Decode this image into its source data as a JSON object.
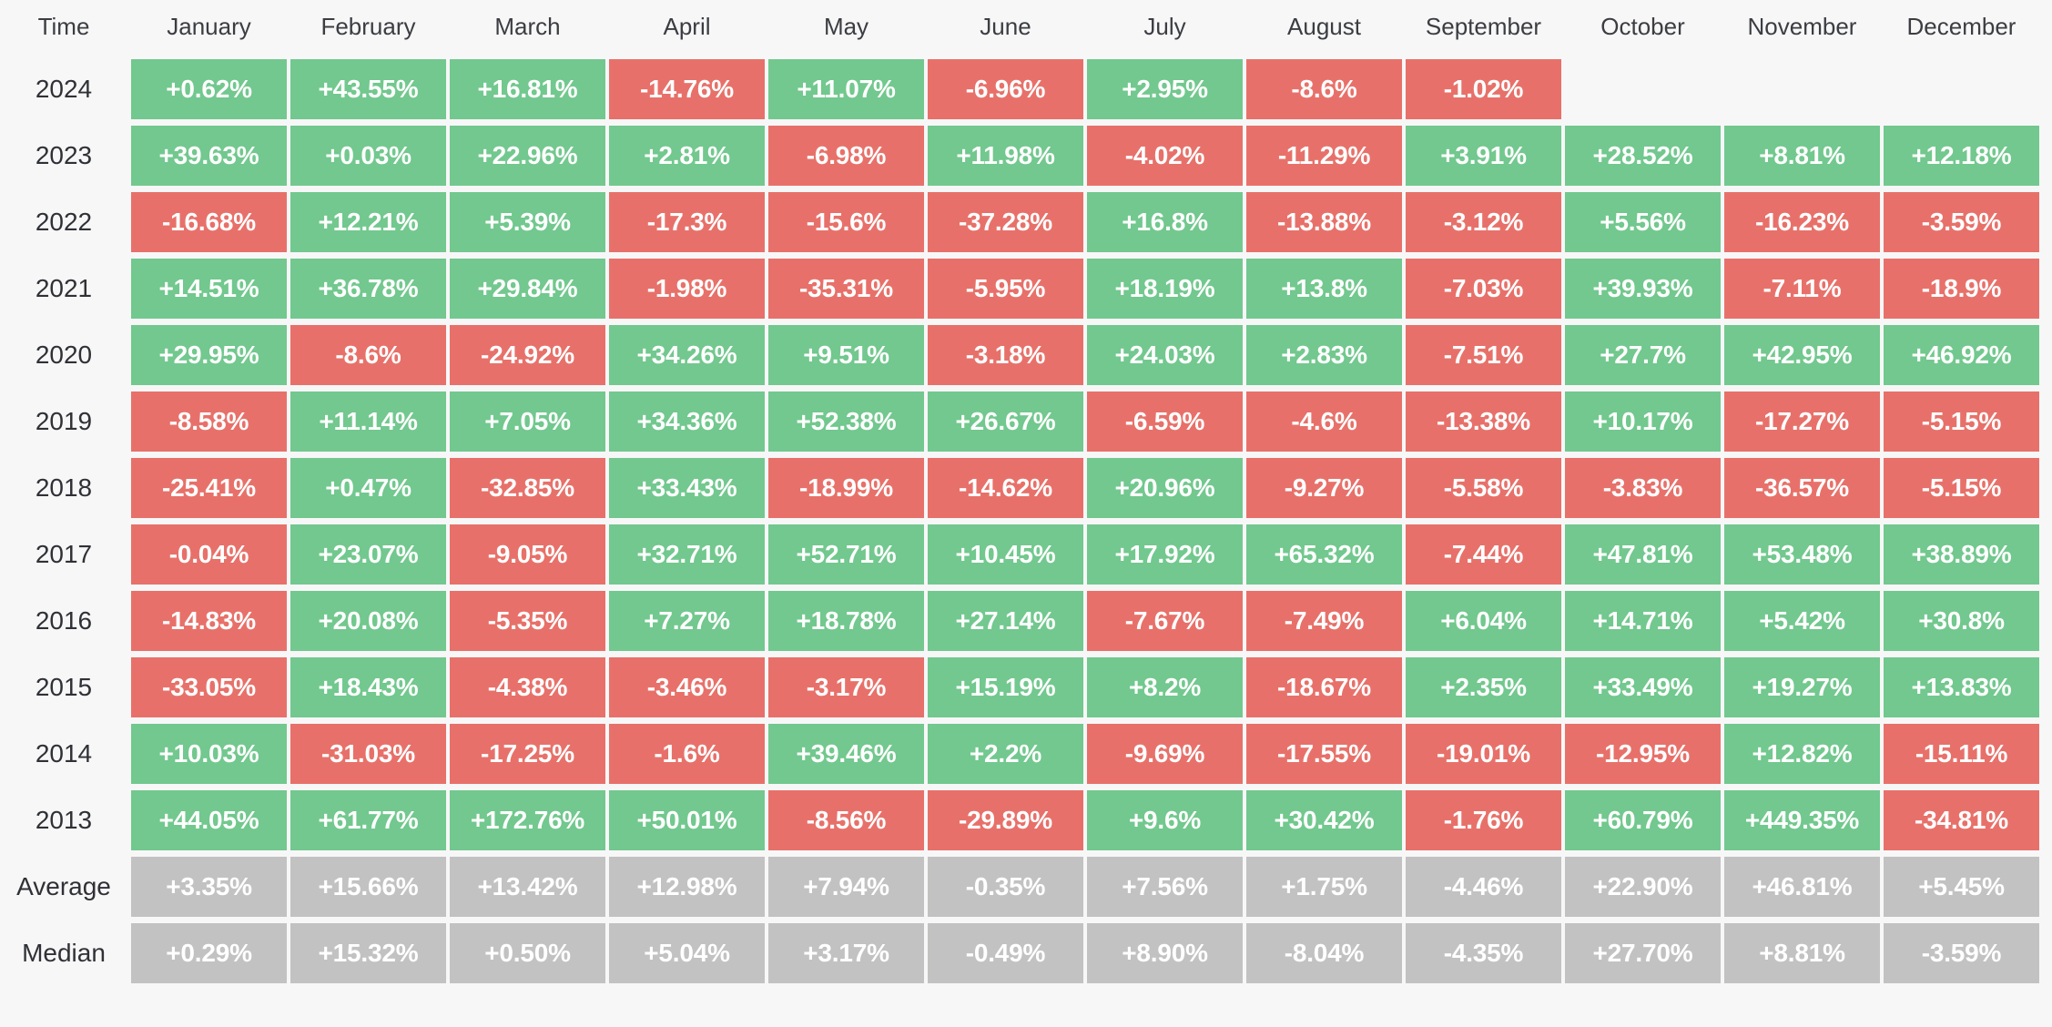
{
  "colors": {
    "positive": "#72c88e",
    "negative": "#e7716a",
    "neutral": "#c2c2c2",
    "background": "#f7f7f8",
    "header_text": "#3b3d42",
    "label_text": "#2f3136",
    "cell_text": "#ffffff"
  },
  "table": {
    "time_header": "Time",
    "months": [
      "January",
      "February",
      "March",
      "April",
      "May",
      "June",
      "July",
      "August",
      "September",
      "October",
      "November",
      "December"
    ],
    "rows": [
      {
        "label": "2024",
        "kind": "year",
        "values": [
          "+0.62%",
          "+43.55%",
          "+16.81%",
          "-14.76%",
          "+11.07%",
          "-6.96%",
          "+2.95%",
          "-8.6%",
          "-1.02%",
          "",
          "",
          ""
        ]
      },
      {
        "label": "2023",
        "kind": "year",
        "values": [
          "+39.63%",
          "+0.03%",
          "+22.96%",
          "+2.81%",
          "-6.98%",
          "+11.98%",
          "-4.02%",
          "-11.29%",
          "+3.91%",
          "+28.52%",
          "+8.81%",
          "+12.18%"
        ]
      },
      {
        "label": "2022",
        "kind": "year",
        "values": [
          "-16.68%",
          "+12.21%",
          "+5.39%",
          "-17.3%",
          "-15.6%",
          "-37.28%",
          "+16.8%",
          "-13.88%",
          "-3.12%",
          "+5.56%",
          "-16.23%",
          "-3.59%"
        ]
      },
      {
        "label": "2021",
        "kind": "year",
        "values": [
          "+14.51%",
          "+36.78%",
          "+29.84%",
          "-1.98%",
          "-35.31%",
          "-5.95%",
          "+18.19%",
          "+13.8%",
          "-7.03%",
          "+39.93%",
          "-7.11%",
          "-18.9%"
        ]
      },
      {
        "label": "2020",
        "kind": "year",
        "values": [
          "+29.95%",
          "-8.6%",
          "-24.92%",
          "+34.26%",
          "+9.51%",
          "-3.18%",
          "+24.03%",
          "+2.83%",
          "-7.51%",
          "+27.7%",
          "+42.95%",
          "+46.92%"
        ]
      },
      {
        "label": "2019",
        "kind": "year",
        "values": [
          "-8.58%",
          "+11.14%",
          "+7.05%",
          "+34.36%",
          "+52.38%",
          "+26.67%",
          "-6.59%",
          "-4.6%",
          "-13.38%",
          "+10.17%",
          "-17.27%",
          "-5.15%"
        ]
      },
      {
        "label": "2018",
        "kind": "year",
        "values": [
          "-25.41%",
          "+0.47%",
          "-32.85%",
          "+33.43%",
          "-18.99%",
          "-14.62%",
          "+20.96%",
          "-9.27%",
          "-5.58%",
          "-3.83%",
          "-36.57%",
          "-5.15%"
        ]
      },
      {
        "label": "2017",
        "kind": "year",
        "values": [
          "-0.04%",
          "+23.07%",
          "-9.05%",
          "+32.71%",
          "+52.71%",
          "+10.45%",
          "+17.92%",
          "+65.32%",
          "-7.44%",
          "+47.81%",
          "+53.48%",
          "+38.89%"
        ]
      },
      {
        "label": "2016",
        "kind": "year",
        "values": [
          "-14.83%",
          "+20.08%",
          "-5.35%",
          "+7.27%",
          "+18.78%",
          "+27.14%",
          "-7.67%",
          "-7.49%",
          "+6.04%",
          "+14.71%",
          "+5.42%",
          "+30.8%"
        ]
      },
      {
        "label": "2015",
        "kind": "year",
        "values": [
          "-33.05%",
          "+18.43%",
          "-4.38%",
          "-3.46%",
          "-3.17%",
          "+15.19%",
          "+8.2%",
          "-18.67%",
          "+2.35%",
          "+33.49%",
          "+19.27%",
          "+13.83%"
        ]
      },
      {
        "label": "2014",
        "kind": "year",
        "values": [
          "+10.03%",
          "-31.03%",
          "-17.25%",
          "-1.6%",
          "+39.46%",
          "+2.2%",
          "-9.69%",
          "-17.55%",
          "-19.01%",
          "-12.95%",
          "+12.82%",
          "-15.11%"
        ]
      },
      {
        "label": "2013",
        "kind": "year",
        "values": [
          "+44.05%",
          "+61.77%",
          "+172.76%",
          "+50.01%",
          "-8.56%",
          "-29.89%",
          "+9.6%",
          "+30.42%",
          "-1.76%",
          "+60.79%",
          "+449.35%",
          "-34.81%"
        ]
      },
      {
        "label": "Average",
        "kind": "summary",
        "values": [
          "+3.35%",
          "+15.66%",
          "+13.42%",
          "+12.98%",
          "+7.94%",
          "-0.35%",
          "+7.56%",
          "+1.75%",
          "-4.46%",
          "+22.90%",
          "+46.81%",
          "+5.45%"
        ]
      },
      {
        "label": "Median",
        "kind": "summary",
        "values": [
          "+0.29%",
          "+15.32%",
          "+0.50%",
          "+5.04%",
          "+3.17%",
          "-0.49%",
          "+8.90%",
          "-8.04%",
          "-4.35%",
          "+27.70%",
          "+8.81%",
          "-3.59%"
        ]
      }
    ]
  },
  "chart_data": {
    "type": "heatmap",
    "unit": "%",
    "columns": [
      "January",
      "February",
      "March",
      "April",
      "May",
      "June",
      "July",
      "August",
      "September",
      "October",
      "November",
      "December"
    ],
    "rows": [
      "2024",
      "2023",
      "2022",
      "2021",
      "2020",
      "2019",
      "2018",
      "2017",
      "2016",
      "2015",
      "2014",
      "2013"
    ],
    "values": [
      [
        0.62,
        43.55,
        16.81,
        -14.76,
        11.07,
        -6.96,
        2.95,
        -8.6,
        -1.02,
        null,
        null,
        null
      ],
      [
        39.63,
        0.03,
        22.96,
        2.81,
        -6.98,
        11.98,
        -4.02,
        -11.29,
        3.91,
        28.52,
        8.81,
        12.18
      ],
      [
        -16.68,
        12.21,
        5.39,
        -17.3,
        -15.6,
        -37.28,
        16.8,
        -13.88,
        -3.12,
        5.56,
        -16.23,
        -3.59
      ],
      [
        14.51,
        36.78,
        29.84,
        -1.98,
        -35.31,
        -5.95,
        18.19,
        13.8,
        -7.03,
        39.93,
        -7.11,
        -18.9
      ],
      [
        29.95,
        -8.6,
        -24.92,
        34.26,
        9.51,
        -3.18,
        24.03,
        2.83,
        -7.51,
        27.7,
        42.95,
        46.92
      ],
      [
        -8.58,
        11.14,
        7.05,
        34.36,
        52.38,
        26.67,
        -6.59,
        -4.6,
        -13.38,
        10.17,
        -17.27,
        -5.15
      ],
      [
        -25.41,
        0.47,
        -32.85,
        33.43,
        -18.99,
        -14.62,
        20.96,
        -9.27,
        -5.58,
        -3.83,
        -36.57,
        -5.15
      ],
      [
        -0.04,
        23.07,
        -9.05,
        32.71,
        52.71,
        10.45,
        17.92,
        65.32,
        -7.44,
        47.81,
        53.48,
        38.89
      ],
      [
        -14.83,
        20.08,
        -5.35,
        7.27,
        18.78,
        27.14,
        -7.67,
        -7.49,
        6.04,
        14.71,
        5.42,
        30.8
      ],
      [
        -33.05,
        18.43,
        -4.38,
        -3.46,
        -3.17,
        15.19,
        8.2,
        -18.67,
        2.35,
        33.49,
        19.27,
        13.83
      ],
      [
        10.03,
        -31.03,
        -17.25,
        -1.6,
        39.46,
        2.2,
        -9.69,
        -17.55,
        -19.01,
        -12.95,
        12.82,
        -15.11
      ],
      [
        44.05,
        61.77,
        172.76,
        50.01,
        -8.56,
        -29.89,
        9.6,
        30.42,
        -1.76,
        60.79,
        449.35,
        -34.81
      ]
    ],
    "average": [
      3.35,
      15.66,
      13.42,
      12.98,
      7.94,
      -0.35,
      7.56,
      1.75,
      -4.46,
      22.9,
      46.81,
      5.45
    ],
    "median": [
      0.29,
      15.32,
      0.5,
      5.04,
      3.17,
      -0.49,
      8.9,
      -8.04,
      -4.35,
      27.7,
      8.81,
      -3.59
    ],
    "legend": "green = positive month, red = negative month, gray = summary row",
    "grid": false
  }
}
